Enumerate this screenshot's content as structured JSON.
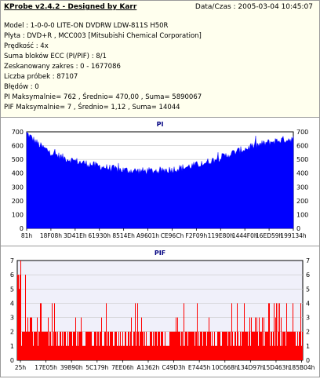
{
  "header": {
    "app_title": "KProbe v2.4.2 - Designed by Karr",
    "datetime": "Data/Czas : 2005-03-04 10:45:07"
  },
  "info": {
    "model": "Model : 1-0-0-0 LITE-ON DVDRW LDW-811S   H50R",
    "disc": "Płyta : DVD+R , MCC003 [Mitsubishi Chemical Corporation]",
    "speed": "Prędkość : 4x",
    "ecc_sum": "Suma bloków ECC (PI/PIF) : 8/1",
    "range": "Zeskanowany zakres : 0 - 1677086",
    "samples": "Liczba próbek : 87107",
    "errors": "Błędów : 0",
    "pi_stats": "PI Maksymalnie= 762 , Średnio= 470,00 , Suma= 5890067",
    "pif_stats": "PIF Maksymalnie= 7 , Średnio= 1,12 , Suma= 14044"
  },
  "colors": {
    "pi_fill": "#0000ff",
    "pif_fill": "#ff0000",
    "plot_bg_pi": "#ffffff",
    "plot_bg_pif": "#f0f0fa",
    "title": "#000080",
    "grid": "#c8c8c8"
  },
  "chart_data": [
    {
      "type": "area",
      "title": "PI",
      "ylim": [
        0,
        700
      ],
      "y_ticks": [
        "700",
        "600",
        "500",
        "400",
        "300",
        "200",
        "100",
        "0"
      ],
      "x_tick_labels": [
        "81h",
        "18F08h",
        "3D41Eh",
        "61930h",
        "8514Eh",
        "A9601h",
        "CE96Ch",
        "F2F09h",
        "119E80h",
        "1444F0h",
        "16ED59h",
        "199134h"
      ],
      "x_progress": [
        0,
        0.05,
        0.1,
        0.15,
        0.2,
        0.25,
        0.3,
        0.35,
        0.4,
        0.45,
        0.5,
        0.55,
        0.6,
        0.65,
        0.7,
        0.75,
        0.8,
        0.85,
        0.9,
        0.95,
        1.0
      ],
      "values": [
        690,
        600,
        540,
        505,
        480,
        460,
        440,
        425,
        418,
        415,
        420,
        428,
        445,
        465,
        495,
        530,
        565,
        595,
        620,
        640,
        650
      ],
      "grid": true
    },
    {
      "type": "bar",
      "title": "PIF",
      "ylim": [
        0,
        7
      ],
      "y_ticks": [
        "7",
        "6",
        "5",
        "4",
        "3",
        "2",
        "1",
        "0"
      ],
      "x_tick_labels": [
        "25h",
        "17E05h",
        "39890h",
        "5C179h",
        "7EE06h",
        "A1362h",
        "C49D3h",
        "E7445h",
        "10C668h",
        "134D97h",
        "15D463h",
        "185B04h"
      ],
      "baseline_level": 2,
      "max": 7,
      "grid": true
    }
  ]
}
